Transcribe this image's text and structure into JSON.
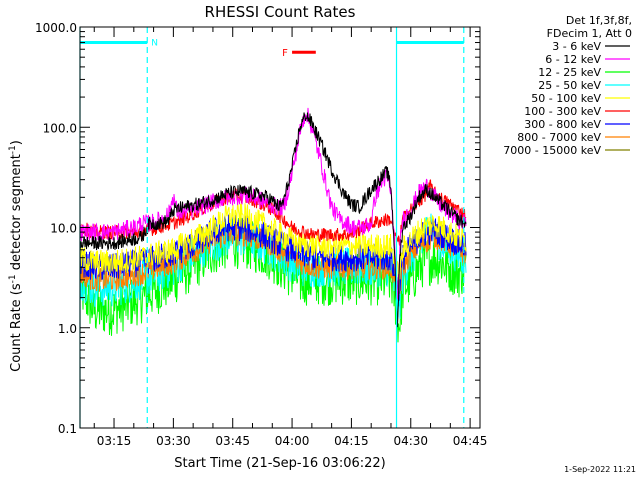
{
  "chart_data": {
    "type": "line",
    "title": "RHESSI Count Rates",
    "xlabel": "Start Time (21-Sep-16 03:06:22)",
    "ylabel_pre": "Count Rate (s",
    "ylabel_sup": "-1",
    "ylabel_mid": " detector segment",
    "ylabel_end": ")",
    "x_range_min": [
      6.4,
      107.5
    ],
    "x_ticks": [
      {
        "m": 15,
        "label": "03:15"
      },
      {
        "m": 30,
        "label": "03:30"
      },
      {
        "m": 45,
        "label": "03:45"
      },
      {
        "m": 60,
        "label": "04:00"
      },
      {
        "m": 75,
        "label": "04:15"
      },
      {
        "m": 90,
        "label": "04:30"
      },
      {
        "m": 105,
        "label": "04:45"
      }
    ],
    "y_log": true,
    "ylim": [
      0.1,
      1000
    ],
    "y_ticks": [
      {
        "v": 0.1,
        "label": "0.1"
      },
      {
        "v": 1,
        "label": "1.0"
      },
      {
        "v": 10,
        "label": "10.0"
      },
      {
        "v": 100,
        "label": "100.0"
      },
      {
        "v": 1000,
        "label": "1000.0"
      }
    ],
    "legend_header": [
      "Det 1f,3f,8f,",
      "FDecim 1, Att 0"
    ],
    "series": [
      {
        "name": "3 - 6 keV",
        "color": "#000000",
        "points": [
          [
            6.4,
            7
          ],
          [
            15,
            7
          ],
          [
            22,
            8
          ],
          [
            24,
            11
          ],
          [
            27,
            11
          ],
          [
            29,
            12
          ],
          [
            30,
            15
          ],
          [
            33,
            16
          ],
          [
            36,
            17
          ],
          [
            40,
            19
          ],
          [
            44,
            22
          ],
          [
            47,
            23
          ],
          [
            50,
            22
          ],
          [
            54,
            20
          ],
          [
            56,
            17
          ],
          [
            57,
            16
          ],
          [
            58,
            19
          ],
          [
            60,
            40
          ],
          [
            62,
            100
          ],
          [
            63.5,
            135
          ],
          [
            65,
            110
          ],
          [
            68,
            60
          ],
          [
            70,
            38
          ],
          [
            73,
            22
          ],
          [
            75,
            17
          ],
          [
            77,
            16
          ],
          [
            80,
            24
          ],
          [
            82,
            30
          ],
          [
            84,
            36
          ],
          [
            85,
            25
          ],
          [
            86,
            5
          ],
          [
            86.6,
            0.9
          ],
          [
            87.2,
            5
          ],
          [
            88,
            10
          ],
          [
            90,
            13
          ],
          [
            92,
            20
          ],
          [
            94,
            24
          ],
          [
            96,
            20
          ],
          [
            98,
            17
          ],
          [
            102,
            12
          ],
          [
            104,
            11
          ]
        ]
      },
      {
        "name": "6 - 12 keV",
        "color": "#ff00ff",
        "points": [
          [
            6.4,
            9
          ],
          [
            15,
            9
          ],
          [
            20,
            10
          ],
          [
            22,
            11
          ],
          [
            24,
            11
          ],
          [
            27,
            12
          ],
          [
            29,
            14
          ],
          [
            30,
            21
          ],
          [
            31,
            14
          ],
          [
            35,
            15
          ],
          [
            40,
            18
          ],
          [
            44,
            20
          ],
          [
            48,
            21
          ],
          [
            52,
            19
          ],
          [
            56,
            16
          ],
          [
            58,
            16
          ],
          [
            60,
            35
          ],
          [
            62,
            90
          ],
          [
            63.5,
            145
          ],
          [
            65,
            100
          ],
          [
            67,
            50
          ],
          [
            68.5,
            28
          ],
          [
            70,
            16
          ],
          [
            72,
            12
          ],
          [
            74,
            11
          ],
          [
            75,
            10
          ],
          [
            78,
            10
          ],
          [
            80,
            11
          ],
          [
            81,
            20
          ],
          [
            82,
            25
          ],
          [
            83,
            30
          ],
          [
            84,
            32
          ],
          [
            85,
            22
          ],
          [
            86,
            6
          ],
          [
            86.6,
            1.5
          ],
          [
            87.2,
            6
          ],
          [
            88,
            12
          ],
          [
            90,
            15
          ],
          [
            92,
            22
          ],
          [
            94,
            26
          ],
          [
            96,
            20
          ],
          [
            98,
            16
          ],
          [
            102,
            12
          ],
          [
            104,
            11
          ]
        ]
      },
      {
        "name": "12 - 25 keV",
        "color": "#00ff00",
        "points": [
          [
            6.4,
            2.5
          ],
          [
            10,
            1.5
          ],
          [
            15,
            1.5
          ],
          [
            22,
            2
          ],
          [
            30,
            3
          ],
          [
            36,
            4.5
          ],
          [
            40,
            6
          ],
          [
            44,
            7
          ],
          [
            48,
            7
          ],
          [
            54,
            5.5
          ],
          [
            58,
            4
          ],
          [
            62,
            3
          ],
          [
            66,
            3
          ],
          [
            70,
            3
          ],
          [
            74,
            3
          ],
          [
            80,
            3
          ],
          [
            85,
            3
          ],
          [
            86,
            2
          ],
          [
            87,
            1
          ],
          [
            88,
            2.5
          ],
          [
            90,
            3
          ],
          [
            93,
            4.5
          ],
          [
            96,
            5
          ],
          [
            98,
            4.5
          ],
          [
            102,
            3.5
          ],
          [
            104,
            4
          ]
        ]
      },
      {
        "name": "25 - 50 keV",
        "color": "#00ffff",
        "points": [
          [
            6.4,
            3
          ],
          [
            10,
            2.5
          ],
          [
            15,
            2.5
          ],
          [
            22,
            3
          ],
          [
            30,
            4
          ],
          [
            36,
            6
          ],
          [
            40,
            7
          ],
          [
            44,
            8
          ],
          [
            48,
            8
          ],
          [
            54,
            6.5
          ],
          [
            58,
            5
          ],
          [
            62,
            4
          ],
          [
            66,
            4
          ],
          [
            70,
            4
          ],
          [
            74,
            4
          ],
          [
            80,
            4
          ],
          [
            85,
            4
          ],
          [
            86,
            2.5
          ],
          [
            87,
            1.5
          ],
          [
            88,
            3.5
          ],
          [
            90,
            5
          ],
          [
            93,
            7
          ],
          [
            95,
            12
          ],
          [
            96,
            8
          ],
          [
            98,
            7
          ],
          [
            102,
            5.5
          ],
          [
            104,
            5
          ]
        ]
      },
      {
        "name": "50 - 100 keV",
        "color": "#ffff00",
        "points": [
          [
            6.4,
            5
          ],
          [
            10,
            4.5
          ],
          [
            15,
            4.5
          ],
          [
            22,
            5
          ],
          [
            30,
            6
          ],
          [
            36,
            8
          ],
          [
            40,
            10
          ],
          [
            44,
            13
          ],
          [
            48,
            13
          ],
          [
            54,
            10
          ],
          [
            58,
            8
          ],
          [
            62,
            7
          ],
          [
            66,
            6.5
          ],
          [
            70,
            6.5
          ],
          [
            74,
            6.5
          ],
          [
            80,
            6.5
          ],
          [
            85,
            6.5
          ],
          [
            86,
            4.5
          ],
          [
            87,
            3
          ],
          [
            88,
            6
          ],
          [
            90,
            7.5
          ],
          [
            93,
            10
          ],
          [
            96,
            11
          ],
          [
            98,
            10
          ],
          [
            102,
            8
          ],
          [
            104,
            7.5
          ]
        ]
      },
      {
        "name": "100 - 300 keV",
        "color": "#ff0000",
        "points": [
          [
            6.4,
            10
          ],
          [
            10,
            9
          ],
          [
            15,
            9
          ],
          [
            22,
            9
          ],
          [
            26,
            10
          ],
          [
            30,
            11
          ],
          [
            34,
            13
          ],
          [
            38,
            16
          ],
          [
            42,
            19
          ],
          [
            46,
            21
          ],
          [
            50,
            19
          ],
          [
            54,
            16
          ],
          [
            56,
            14
          ],
          [
            58,
            12
          ],
          [
            60,
            10
          ],
          [
            65,
            8.5
          ],
          [
            70,
            8.5
          ],
          [
            75,
            8.5
          ],
          [
            78,
            10
          ],
          [
            80,
            11
          ],
          [
            84,
            12
          ],
          [
            85,
            12
          ],
          [
            86,
            8
          ],
          [
            87,
            7
          ],
          [
            88,
            12
          ],
          [
            90,
            15
          ],
          [
            92,
            18
          ],
          [
            94,
            22
          ],
          [
            95,
            26
          ],
          [
            96,
            22
          ],
          [
            98,
            19
          ],
          [
            100,
            17
          ],
          [
            102,
            15
          ],
          [
            104,
            13
          ]
        ]
      },
      {
        "name": "300 - 800 keV",
        "color": "#0000ff",
        "points": [
          [
            6.4,
            4.5
          ],
          [
            10,
            4
          ],
          [
            15,
            4
          ],
          [
            22,
            4.5
          ],
          [
            30,
            5.5
          ],
          [
            36,
            7
          ],
          [
            40,
            9
          ],
          [
            44,
            10
          ],
          [
            48,
            10
          ],
          [
            54,
            8
          ],
          [
            58,
            6.5
          ],
          [
            62,
            5.5
          ],
          [
            66,
            5
          ],
          [
            70,
            5
          ],
          [
            74,
            5
          ],
          [
            80,
            5
          ],
          [
            85,
            5
          ],
          [
            86,
            3.5
          ],
          [
            87,
            2.5
          ],
          [
            88,
            5
          ],
          [
            90,
            6.5
          ],
          [
            93,
            8.5
          ],
          [
            96,
            9.5
          ],
          [
            98,
            8.5
          ],
          [
            102,
            7
          ],
          [
            104,
            6.5
          ]
        ]
      },
      {
        "name": "800 - 7000 keV",
        "color": "#ff8000",
        "points": [
          [
            6.4,
            3.5
          ],
          [
            10,
            3
          ],
          [
            15,
            3
          ],
          [
            22,
            3.5
          ],
          [
            30,
            4.5
          ],
          [
            36,
            6
          ],
          [
            40,
            7.5
          ],
          [
            44,
            8.5
          ],
          [
            48,
            8.5
          ],
          [
            54,
            7
          ],
          [
            58,
            5.5
          ],
          [
            62,
            4.5
          ],
          [
            66,
            4
          ],
          [
            70,
            4
          ],
          [
            74,
            4
          ],
          [
            80,
            4
          ],
          [
            85,
            4
          ],
          [
            86,
            3
          ],
          [
            87,
            2
          ],
          [
            88,
            4
          ],
          [
            90,
            5.5
          ],
          [
            93,
            7
          ],
          [
            96,
            8
          ],
          [
            98,
            7.5
          ],
          [
            102,
            6
          ],
          [
            104,
            5.5
          ]
        ]
      },
      {
        "name": "7000 - 15000 keV",
        "color": "#808000",
        "points": []
      }
    ],
    "shaded_intervals": [
      {
        "label": "N",
        "color": "#00ffff",
        "start": 6.4,
        "end": 23.4,
        "level": 700
      },
      {
        "label": "",
        "color": "#00ffff",
        "start": 86.4,
        "end": 103.4,
        "level": 700
      }
    ],
    "flare_marker": {
      "label": "F",
      "color": "#ff0000",
      "start": 60,
      "end": 66,
      "level": 560
    }
  },
  "footer": {
    "date": "1-Sep-2022 11:21"
  }
}
